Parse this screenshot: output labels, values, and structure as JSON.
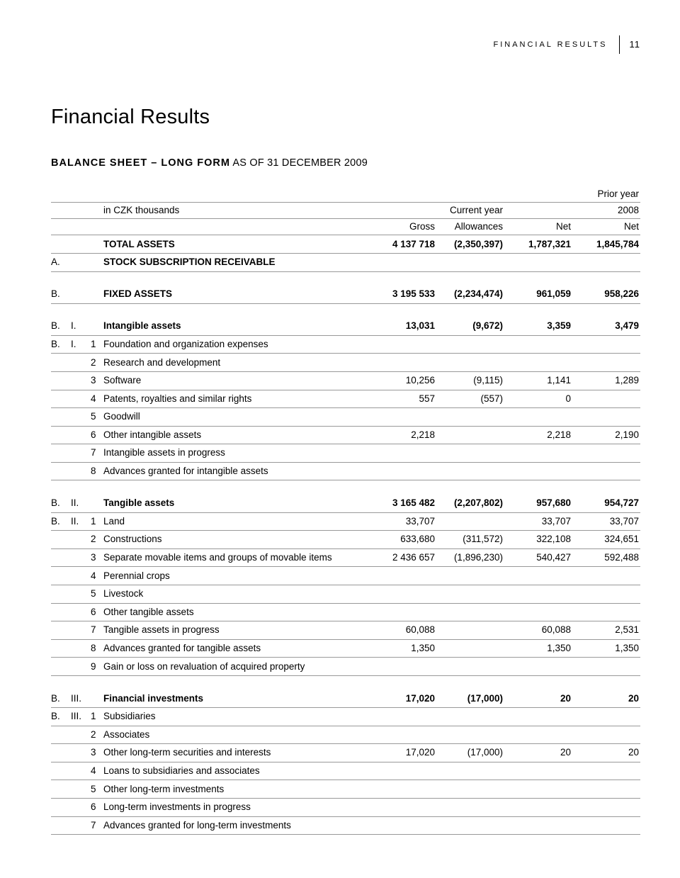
{
  "page_header": {
    "label": "FINANCIAL RESULTS",
    "page": "11"
  },
  "title": "Financial Results",
  "subtitle_bold": "BALANCE SHEET – LONG FORM",
  "subtitle_rest": " AS OF 31 DECEMBER 2009",
  "header": {
    "unit": "in CZK thousands",
    "current": "Current year",
    "prior_label": "Prior year",
    "prior_year": "2008",
    "gross": "Gross",
    "allowances": "Allowances",
    "net": "Net",
    "net2": "Net"
  },
  "rows": [
    {
      "c1": "",
      "c2": "",
      "c3": "",
      "label": "TOTAL ASSETS",
      "bold": true,
      "v": [
        "4 137 718",
        "(2,350,397)",
        "1,787,321",
        "1,845,784"
      ]
    },
    {
      "c1": "A.",
      "c2": "",
      "c3": "",
      "label": "STOCK SUBSCRIPTION RECEIVABLE",
      "bold": true,
      "v": [
        "",
        "",
        "",
        ""
      ]
    },
    {
      "gap": true
    },
    {
      "c1": "B.",
      "c2": "",
      "c3": "",
      "label": "FIXED ASSETS",
      "bold": true,
      "v": [
        "3 195 533",
        "(2,234,474)",
        "961,059",
        "958,226"
      ]
    },
    {
      "gap": true
    },
    {
      "c1": "B.",
      "c2": "I.",
      "c3": "",
      "label": "Intangible assets",
      "bold": true,
      "v": [
        "13,031",
        "(9,672)",
        "3,359",
        "3,479"
      ]
    },
    {
      "c1": "B.",
      "c2": "I.",
      "c3": "1",
      "label": "Foundation and organization expenses",
      "v": [
        "",
        "",
        "",
        ""
      ]
    },
    {
      "c1": "",
      "c2": "",
      "c3": "2",
      "label": "Research and development",
      "v": [
        "",
        "",
        "",
        ""
      ]
    },
    {
      "c1": "",
      "c2": "",
      "c3": "3",
      "label": "Software",
      "v": [
        "10,256",
        "(9,115)",
        "1,141",
        "1,289"
      ]
    },
    {
      "c1": "",
      "c2": "",
      "c3": "4",
      "label": "Patents, royalties and similar rights",
      "v": [
        "557",
        "(557)",
        "0",
        ""
      ]
    },
    {
      "c1": "",
      "c2": "",
      "c3": "5",
      "label": "Goodwill",
      "v": [
        "",
        "",
        "",
        ""
      ]
    },
    {
      "c1": "",
      "c2": "",
      "c3": "6",
      "label": "Other intangible assets",
      "v": [
        "2,218",
        "",
        "2,218",
        "2,190"
      ]
    },
    {
      "c1": "",
      "c2": "",
      "c3": "7",
      "label": "Intangible assets in progress",
      "v": [
        "",
        "",
        "",
        ""
      ]
    },
    {
      "c1": "",
      "c2": "",
      "c3": "8",
      "label": "Advances granted for intangible assets",
      "v": [
        "",
        "",
        "",
        ""
      ]
    },
    {
      "gap": true
    },
    {
      "c1": "B.",
      "c2": "II.",
      "c3": "",
      "label": "Tangible assets",
      "bold": true,
      "v": [
        "3 165 482",
        "(2,207,802)",
        "957,680",
        "954,727"
      ]
    },
    {
      "c1": "B.",
      "c2": "II.",
      "c3": "1",
      "label": "Land",
      "v": [
        "33,707",
        "",
        "33,707",
        "33,707"
      ]
    },
    {
      "c1": "",
      "c2": "",
      "c3": "2",
      "label": "Constructions",
      "v": [
        "633,680",
        "(311,572)",
        "322,108",
        "324,651"
      ]
    },
    {
      "c1": "",
      "c2": "",
      "c3": "3",
      "label": "Separate movable items and groups of movable items",
      "v": [
        "2 436 657",
        "(1,896,230)",
        "540,427",
        "592,488"
      ]
    },
    {
      "c1": "",
      "c2": "",
      "c3": "4",
      "label": "Perennial crops",
      "v": [
        "",
        "",
        "",
        ""
      ]
    },
    {
      "c1": "",
      "c2": "",
      "c3": "5",
      "label": "Livestock",
      "v": [
        "",
        "",
        "",
        ""
      ]
    },
    {
      "c1": "",
      "c2": "",
      "c3": "6",
      "label": "Other tangible assets",
      "v": [
        "",
        "",
        "",
        ""
      ]
    },
    {
      "c1": "",
      "c2": "",
      "c3": "7",
      "label": "Tangible assets in progress",
      "v": [
        "60,088",
        "",
        "60,088",
        "2,531"
      ]
    },
    {
      "c1": "",
      "c2": "",
      "c3": "8",
      "label": "Advances granted for tangible assets",
      "v": [
        "1,350",
        "",
        "1,350",
        "1,350"
      ]
    },
    {
      "c1": "",
      "c2": "",
      "c3": "9",
      "label": "Gain or loss on revaluation of acquired property",
      "v": [
        "",
        "",
        "",
        ""
      ]
    },
    {
      "gap": true
    },
    {
      "c1": "B.",
      "c2": "III.",
      "c3": "",
      "label": "Financial investments",
      "bold": true,
      "v": [
        "17,020",
        "(17,000)",
        "20",
        "20"
      ]
    },
    {
      "c1": "B.",
      "c2": "III.",
      "c3": "1",
      "label": "Subsidiaries",
      "v": [
        "",
        "",
        "",
        ""
      ]
    },
    {
      "c1": "",
      "c2": "",
      "c3": "2",
      "label": "Associates",
      "v": [
        "",
        "",
        "",
        ""
      ]
    },
    {
      "c1": "",
      "c2": "",
      "c3": "3",
      "label": "Other long-term securities and interests",
      "v": [
        "17,020",
        "(17,000)",
        "20",
        "20"
      ]
    },
    {
      "c1": "",
      "c2": "",
      "c3": "4",
      "label": "Loans to subsidiaries and associates",
      "v": [
        "",
        "",
        "",
        ""
      ]
    },
    {
      "c1": "",
      "c2": "",
      "c3": "5",
      "label": "Other long-term investments",
      "v": [
        "",
        "",
        "",
        ""
      ]
    },
    {
      "c1": "",
      "c2": "",
      "c3": "6",
      "label": "Long-term investments in progress",
      "v": [
        "",
        "",
        "",
        ""
      ]
    },
    {
      "c1": "",
      "c2": "",
      "c3": "7",
      "label": "Advances granted for long-term investments",
      "v": [
        "",
        "",
        "",
        ""
      ]
    }
  ]
}
